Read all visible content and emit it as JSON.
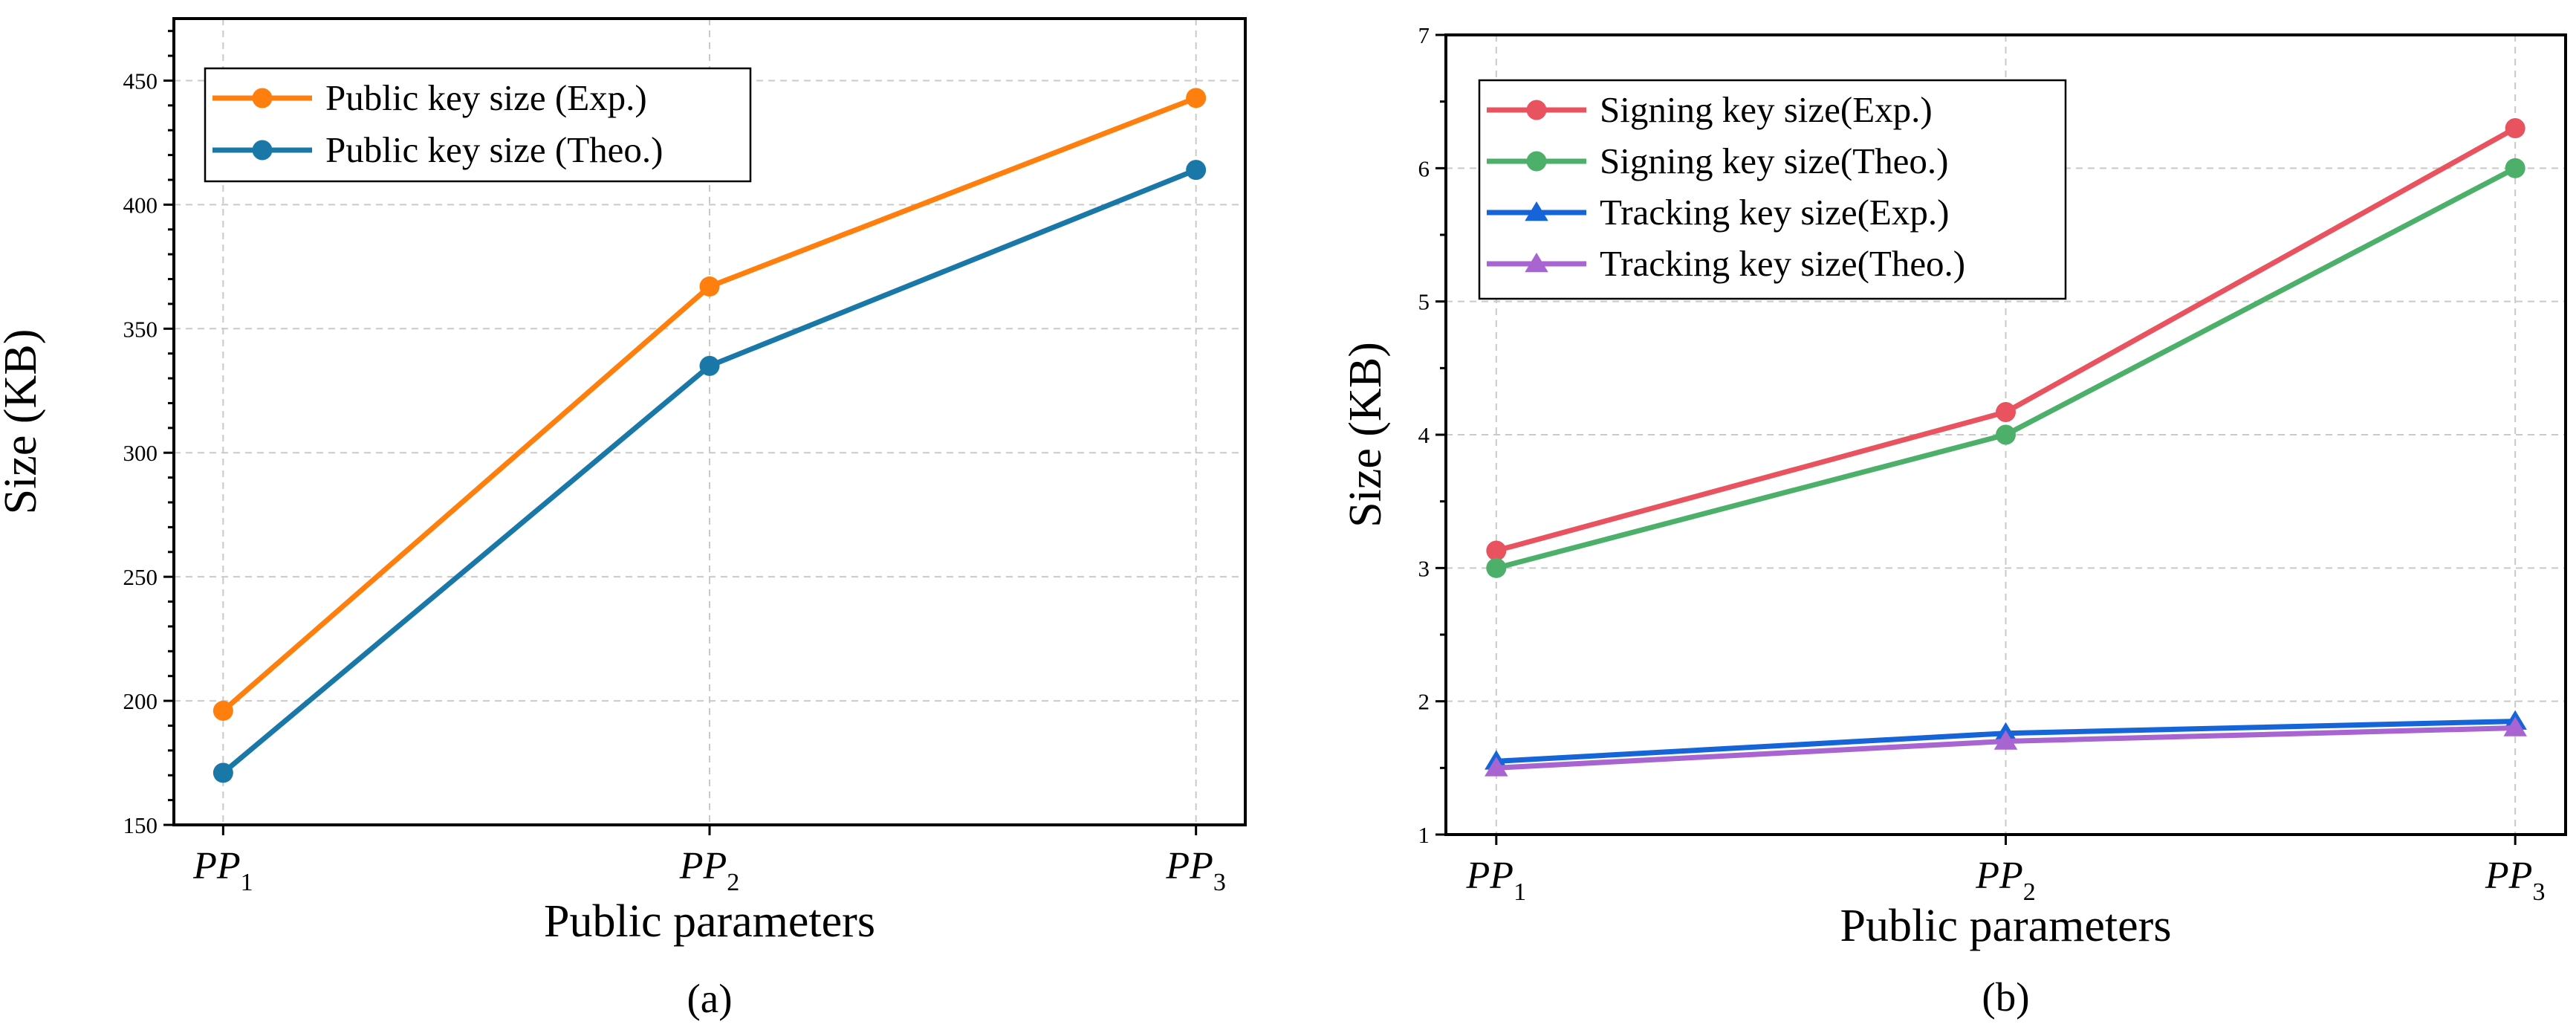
{
  "chart_data": [
    {
      "type": "line",
      "panel_label": "(a)",
      "xlabel": "Public parameters",
      "ylabel": "Size (KB)",
      "categories": [
        {
          "base": "PP",
          "sub": "1"
        },
        {
          "base": "PP",
          "sub": "2"
        },
        {
          "base": "PP",
          "sub": "3"
        }
      ],
      "ylim": [
        150,
        475
      ],
      "yticks": [
        150,
        200,
        250,
        300,
        350,
        400,
        450
      ],
      "grid": true,
      "legend_position": "top-left",
      "series": [
        {
          "name": "Public key size (Exp.)",
          "values": [
            196,
            367,
            443
          ],
          "color": "#ff7f0e",
          "marker": "circle"
        },
        {
          "name": "Public key size (Theo.)",
          "values": [
            171,
            335,
            414
          ],
          "color": "#1a78a8",
          "marker": "circle"
        }
      ]
    },
    {
      "type": "line",
      "panel_label": "(b)",
      "xlabel": "Public parameters",
      "ylabel": "Size (KB)",
      "categories": [
        {
          "base": "PP",
          "sub": "1"
        },
        {
          "base": "PP",
          "sub": "2"
        },
        {
          "base": "PP",
          "sub": "3"
        }
      ],
      "ylim": [
        1,
        7
      ],
      "yticks": [
        1,
        2,
        3,
        4,
        5,
        6,
        7
      ],
      "grid": true,
      "legend_position": "top-left",
      "series": [
        {
          "name": "Signing key size(Exp.)",
          "values": [
            3.13,
            4.17,
            6.3
          ],
          "color": "#e8535f",
          "marker": "circle"
        },
        {
          "name": "Signing key size(Theo.)",
          "values": [
            3.0,
            4.0,
            6.0
          ],
          "color": "#4caf6a",
          "marker": "circle"
        },
        {
          "name": "Tracking key size(Exp.)",
          "values": [
            1.55,
            1.76,
            1.85
          ],
          "color": "#1565d8",
          "marker": "triangle"
        },
        {
          "name": "Tracking key size(Theo.)",
          "values": [
            1.5,
            1.7,
            1.8
          ],
          "color": "#a864d0",
          "marker": "triangle"
        }
      ]
    }
  ]
}
